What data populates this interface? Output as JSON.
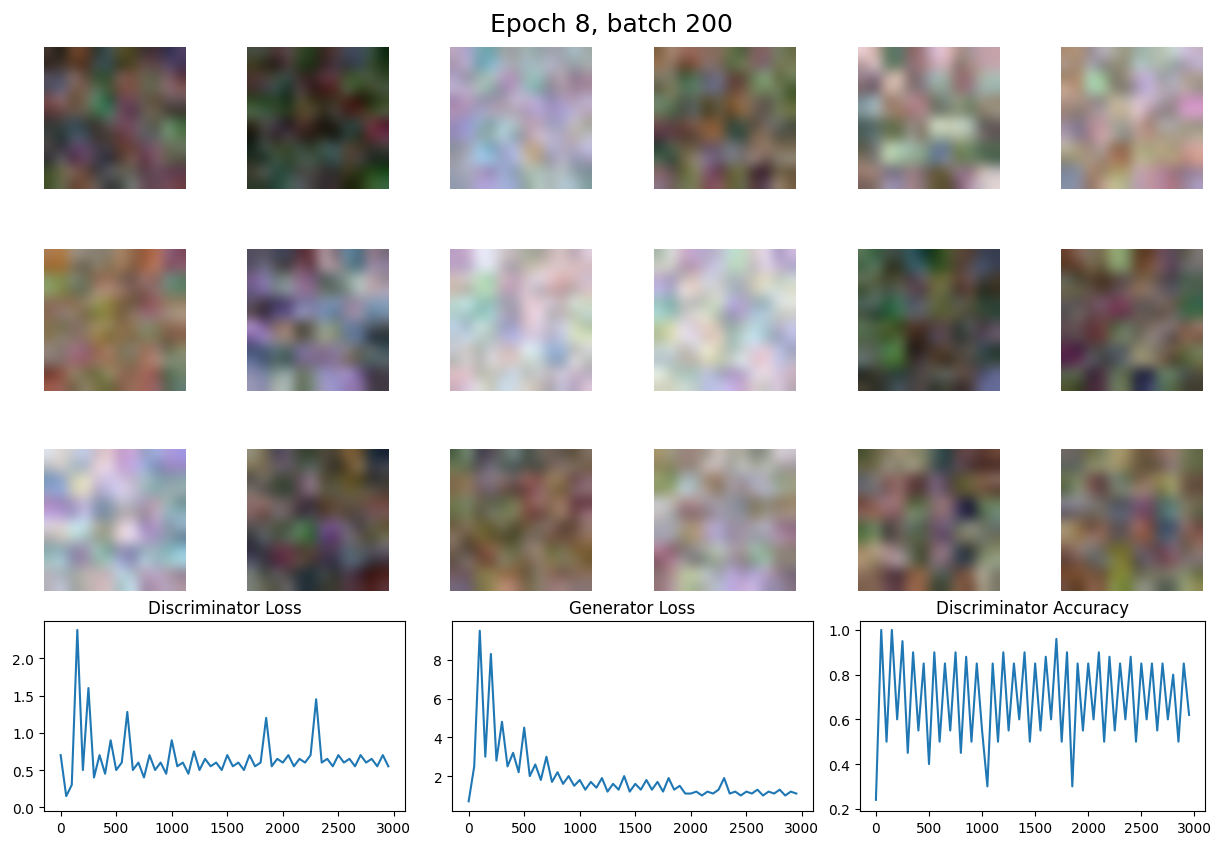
{
  "title": "Epoch 8, batch 200",
  "chart_data": [
    {
      "type": "line",
      "title": "Discriminator Loss",
      "color": "#1f77b4",
      "x": [
        0,
        50,
        100,
        150,
        200,
        250,
        300,
        350,
        400,
        450,
        500,
        550,
        600,
        650,
        700,
        750,
        800,
        850,
        900,
        950,
        1000,
        1050,
        1100,
        1150,
        1200,
        1250,
        1300,
        1350,
        1400,
        1450,
        1500,
        1550,
        1600,
        1650,
        1700,
        1750,
        1800,
        1850,
        1900,
        1950,
        2000,
        2050,
        2100,
        2150,
        2200,
        2250,
        2300,
        2350,
        2400,
        2450,
        2500,
        2550,
        2600,
        2650,
        2700,
        2750,
        2800,
        2850,
        2900,
        2950
      ],
      "values": [
        0.7,
        0.15,
        0.3,
        2.38,
        0.5,
        1.6,
        0.4,
        0.7,
        0.45,
        0.9,
        0.5,
        0.6,
        1.28,
        0.5,
        0.6,
        0.4,
        0.7,
        0.5,
        0.6,
        0.45,
        0.9,
        0.55,
        0.6,
        0.45,
        0.75,
        0.5,
        0.65,
        0.55,
        0.6,
        0.5,
        0.7,
        0.55,
        0.6,
        0.5,
        0.7,
        0.55,
        0.6,
        1.2,
        0.55,
        0.65,
        0.6,
        0.7,
        0.55,
        0.65,
        0.6,
        0.7,
        1.45,
        0.6,
        0.65,
        0.55,
        0.7,
        0.6,
        0.65,
        0.55,
        0.7,
        0.6,
        0.65,
        0.55,
        0.7,
        0.55
      ],
      "xlim": [
        -150,
        3100
      ],
      "xticks": [
        0,
        500,
        1000,
        1500,
        2000,
        2500,
        3000
      ],
      "ylim": [
        -0.05,
        2.5
      ],
      "yticks": [
        {
          "value": 0,
          "label": "0.0"
        },
        0.5,
        {
          "value": 1,
          "label": "1.0"
        },
        1.5,
        {
          "value": 2,
          "label": "2.0"
        }
      ]
    },
    {
      "type": "line",
      "title": "Generator Loss",
      "color": "#1f77b4",
      "x": [
        0,
        50,
        100,
        150,
        200,
        250,
        300,
        350,
        400,
        450,
        500,
        550,
        600,
        650,
        700,
        750,
        800,
        850,
        900,
        950,
        1000,
        1050,
        1100,
        1150,
        1200,
        1250,
        1300,
        1350,
        1400,
        1450,
        1500,
        1550,
        1600,
        1650,
        1700,
        1750,
        1800,
        1850,
        1900,
        1950,
        2000,
        2050,
        2100,
        2150,
        2200,
        2250,
        2300,
        2350,
        2400,
        2450,
        2500,
        2550,
        2600,
        2650,
        2700,
        2750,
        2800,
        2850,
        2900,
        2950
      ],
      "values": [
        0.7,
        2.5,
        9.5,
        3.0,
        8.3,
        2.8,
        4.8,
        2.5,
        3.2,
        2.2,
        4.5,
        2.0,
        2.6,
        1.8,
        3.0,
        1.7,
        2.2,
        1.6,
        2.0,
        1.5,
        1.8,
        1.3,
        1.7,
        1.4,
        1.9,
        1.2,
        1.6,
        1.3,
        2.0,
        1.2,
        1.6,
        1.3,
        1.8,
        1.3,
        1.7,
        1.2,
        1.9,
        1.3,
        1.5,
        1.1,
        1.1,
        1.2,
        1.0,
        1.2,
        1.1,
        1.3,
        1.9,
        1.1,
        1.2,
        1.0,
        1.2,
        1.1,
        1.3,
        1.0,
        1.2,
        1.1,
        1.3,
        1.0,
        1.2,
        1.1
      ],
      "xlim": [
        -150,
        3100
      ],
      "xticks": [
        0,
        500,
        1000,
        1500,
        2000,
        2500,
        3000
      ],
      "ylim": [
        0.2,
        10.0
      ],
      "yticks": [
        2,
        4,
        6,
        8
      ]
    },
    {
      "type": "line",
      "title": "Discriminator Accuracy",
      "color": "#1f77b4",
      "x": [
        0,
        50,
        100,
        150,
        200,
        250,
        300,
        350,
        400,
        450,
        500,
        550,
        600,
        650,
        700,
        750,
        800,
        850,
        900,
        950,
        1000,
        1050,
        1100,
        1150,
        1200,
        1250,
        1300,
        1350,
        1400,
        1450,
        1500,
        1550,
        1600,
        1650,
        1700,
        1750,
        1800,
        1850,
        1900,
        1950,
        2000,
        2050,
        2100,
        2150,
        2200,
        2250,
        2300,
        2350,
        2400,
        2450,
        2500,
        2550,
        2600,
        2650,
        2700,
        2750,
        2800,
        2850,
        2900,
        2950
      ],
      "values": [
        0.24,
        1.0,
        0.5,
        1.0,
        0.6,
        0.95,
        0.45,
        0.9,
        0.55,
        0.85,
        0.4,
        0.9,
        0.5,
        0.85,
        0.55,
        0.9,
        0.45,
        0.88,
        0.5,
        0.85,
        0.55,
        0.3,
        0.85,
        0.5,
        0.9,
        0.55,
        0.85,
        0.6,
        0.9,
        0.5,
        0.85,
        0.55,
        0.88,
        0.6,
        0.96,
        0.5,
        0.9,
        0.3,
        0.85,
        0.55,
        0.85,
        0.6,
        0.9,
        0.5,
        0.88,
        0.55,
        0.85,
        0.6,
        0.88,
        0.5,
        0.85,
        0.6,
        0.85,
        0.55,
        0.85,
        0.6,
        0.8,
        0.5,
        0.85,
        0.62
      ],
      "xlim": [
        -150,
        3100
      ],
      "xticks": [
        0,
        500,
        1000,
        1500,
        2000,
        2500,
        3000
      ],
      "ylim": [
        0.19,
        1.04
      ],
      "yticks": [
        0.2,
        0.4,
        0.6,
        0.8,
        {
          "value": 1,
          "label": "1.0"
        }
      ]
    }
  ]
}
